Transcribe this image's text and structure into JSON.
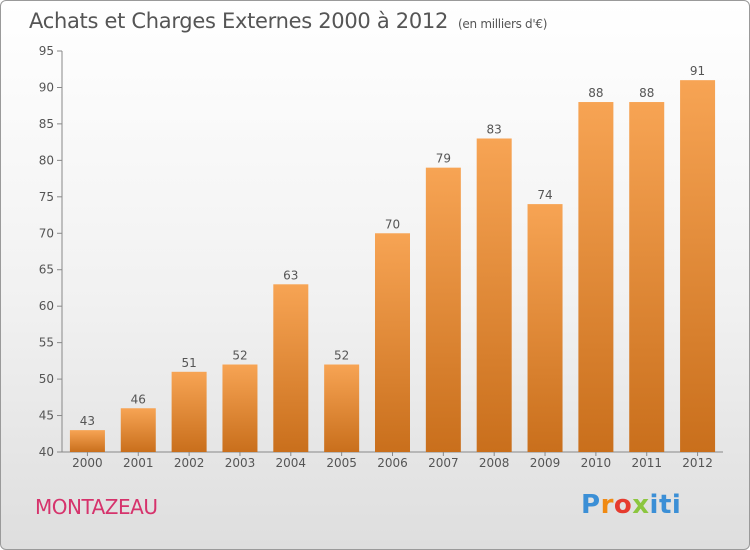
{
  "title": "Achats et Charges Externes 2000 à 2012",
  "unit": "(en milliers d'€)",
  "commune": "MONTAZEAU",
  "logo": "Proxiti",
  "colors": {
    "bar_light": "#f7a454",
    "bar_dark": "#c96f1c",
    "text": "#555555",
    "commune": "#d6336c"
  },
  "chart_data": {
    "type": "bar",
    "categories": [
      "2000",
      "2001",
      "2002",
      "2003",
      "2004",
      "2005",
      "2006",
      "2007",
      "2008",
      "2009",
      "2010",
      "2011",
      "2012"
    ],
    "values": [
      43,
      46,
      51,
      52,
      63,
      52,
      70,
      79,
      83,
      74,
      88,
      88,
      91
    ],
    "ylim": [
      40,
      95
    ],
    "yticks": [
      40,
      45,
      50,
      55,
      60,
      65,
      70,
      75,
      80,
      85,
      90,
      95
    ],
    "grid": false,
    "legend": "none"
  }
}
